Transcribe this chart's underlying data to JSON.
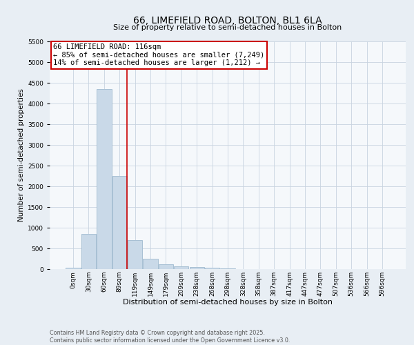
{
  "title": "66, LIMEFIELD ROAD, BOLTON, BL1 6LA",
  "subtitle": "Size of property relative to semi-detached houses in Bolton",
  "xlabel": "Distribution of semi-detached houses by size in Bolton",
  "ylabel": "Number of semi-detached properties",
  "bar_labels": [
    "0sqm",
    "30sqm",
    "60sqm",
    "89sqm",
    "119sqm",
    "149sqm",
    "179sqm",
    "209sqm",
    "238sqm",
    "268sqm",
    "298sqm",
    "328sqm",
    "358sqm",
    "387sqm",
    "417sqm",
    "447sqm",
    "477sqm",
    "507sqm",
    "536sqm",
    "566sqm",
    "596sqm"
  ],
  "bar_heights": [
    30,
    850,
    4350,
    2250,
    700,
    250,
    120,
    65,
    55,
    35,
    20,
    5,
    3,
    2,
    1,
    1,
    0,
    0,
    0,
    0,
    0
  ],
  "bar_color": "#c9d9e8",
  "bar_edgecolor": "#a8c0d4",
  "bar_linewidth": 0.7,
  "vline_x_index": 3.5,
  "vline_color": "#cc0000",
  "vline_linewidth": 1.2,
  "ylim": [
    0,
    5500
  ],
  "yticks": [
    0,
    500,
    1000,
    1500,
    2000,
    2500,
    3000,
    3500,
    4000,
    4500,
    5000,
    5500
  ],
  "annotation_text": "66 LIMEFIELD ROAD: 116sqm\n← 85% of semi-detached houses are smaller (7,249)\n14% of semi-detached houses are larger (1,212) →",
  "annotation_fontsize": 7.5,
  "annotation_box_color": "#ffffff",
  "annotation_box_edgecolor": "#cc0000",
  "title_fontsize": 10,
  "xlabel_fontsize": 8,
  "ylabel_fontsize": 7.5,
  "tick_fontsize": 6.5,
  "background_color": "#e8eef4",
  "plot_background_color": "#f5f8fb",
  "grid_color": "#c8d4e0",
  "footer_line1": "Contains HM Land Registry data © Crown copyright and database right 2025.",
  "footer_line2": "Contains public sector information licensed under the Open Government Licence v3.0.",
  "footer_fontsize": 5.8
}
